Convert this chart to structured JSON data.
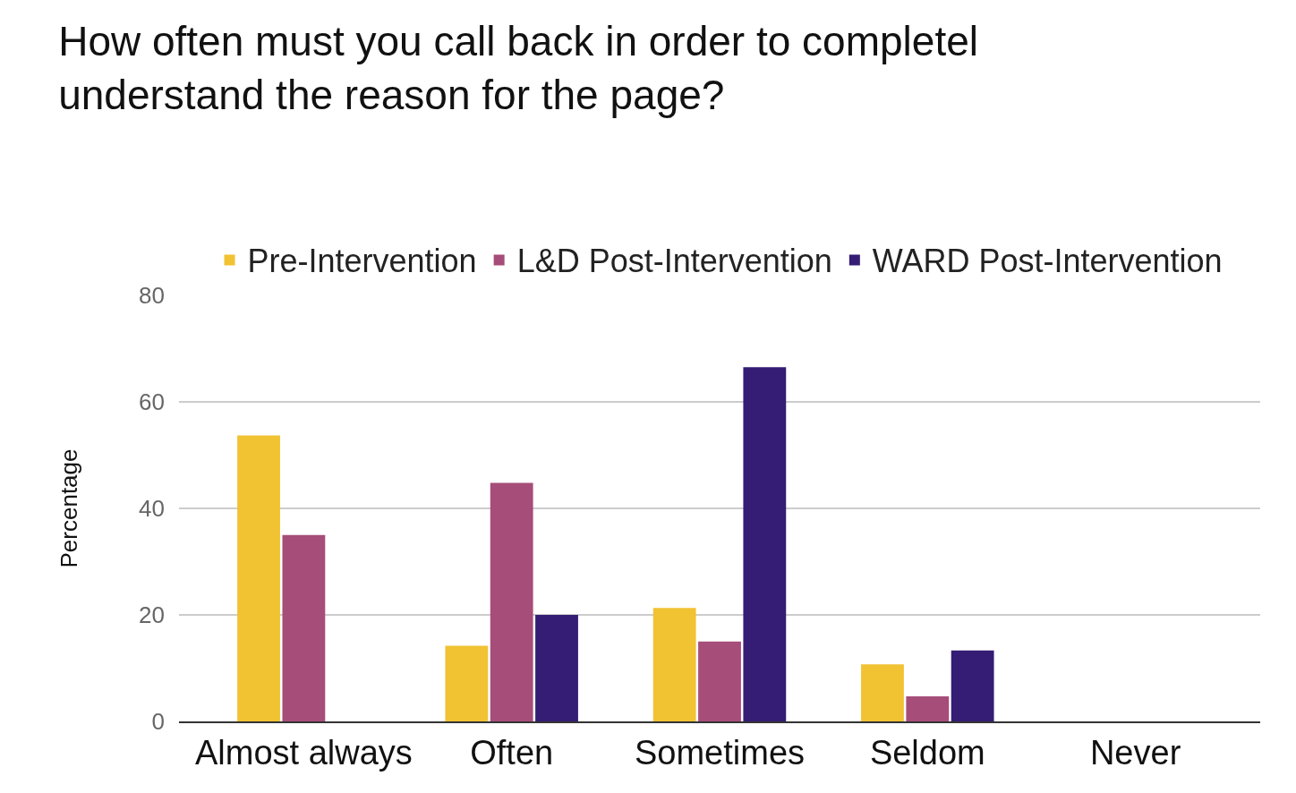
{
  "chart_data": {
    "type": "bar",
    "title": "How often must you call back in order to completel\nunderstand the reason for the page?",
    "ylabel": "Percentage",
    "categories": [
      "Almost always",
      "Often",
      "Sometimes",
      "Seldom",
      "Never"
    ],
    "series": [
      {
        "name": "Pre-Intervention",
        "color": "#f1c232",
        "values": [
          53.7,
          14.2,
          21.3,
          10.7,
          0
        ]
      },
      {
        "name": "L&D Post-Intervention",
        "color": "#a64d79",
        "values": [
          35,
          44.8,
          15,
          4.7,
          0
        ]
      },
      {
        "name": "WARD Post-Intervention",
        "color": "#351c75",
        "values": [
          0,
          20,
          66.5,
          13.3,
          0
        ]
      }
    ],
    "ylim": [
      0,
      80
    ],
    "yticks": [
      0,
      20,
      40,
      60,
      80
    ],
    "grid": "y",
    "legend": "top"
  }
}
